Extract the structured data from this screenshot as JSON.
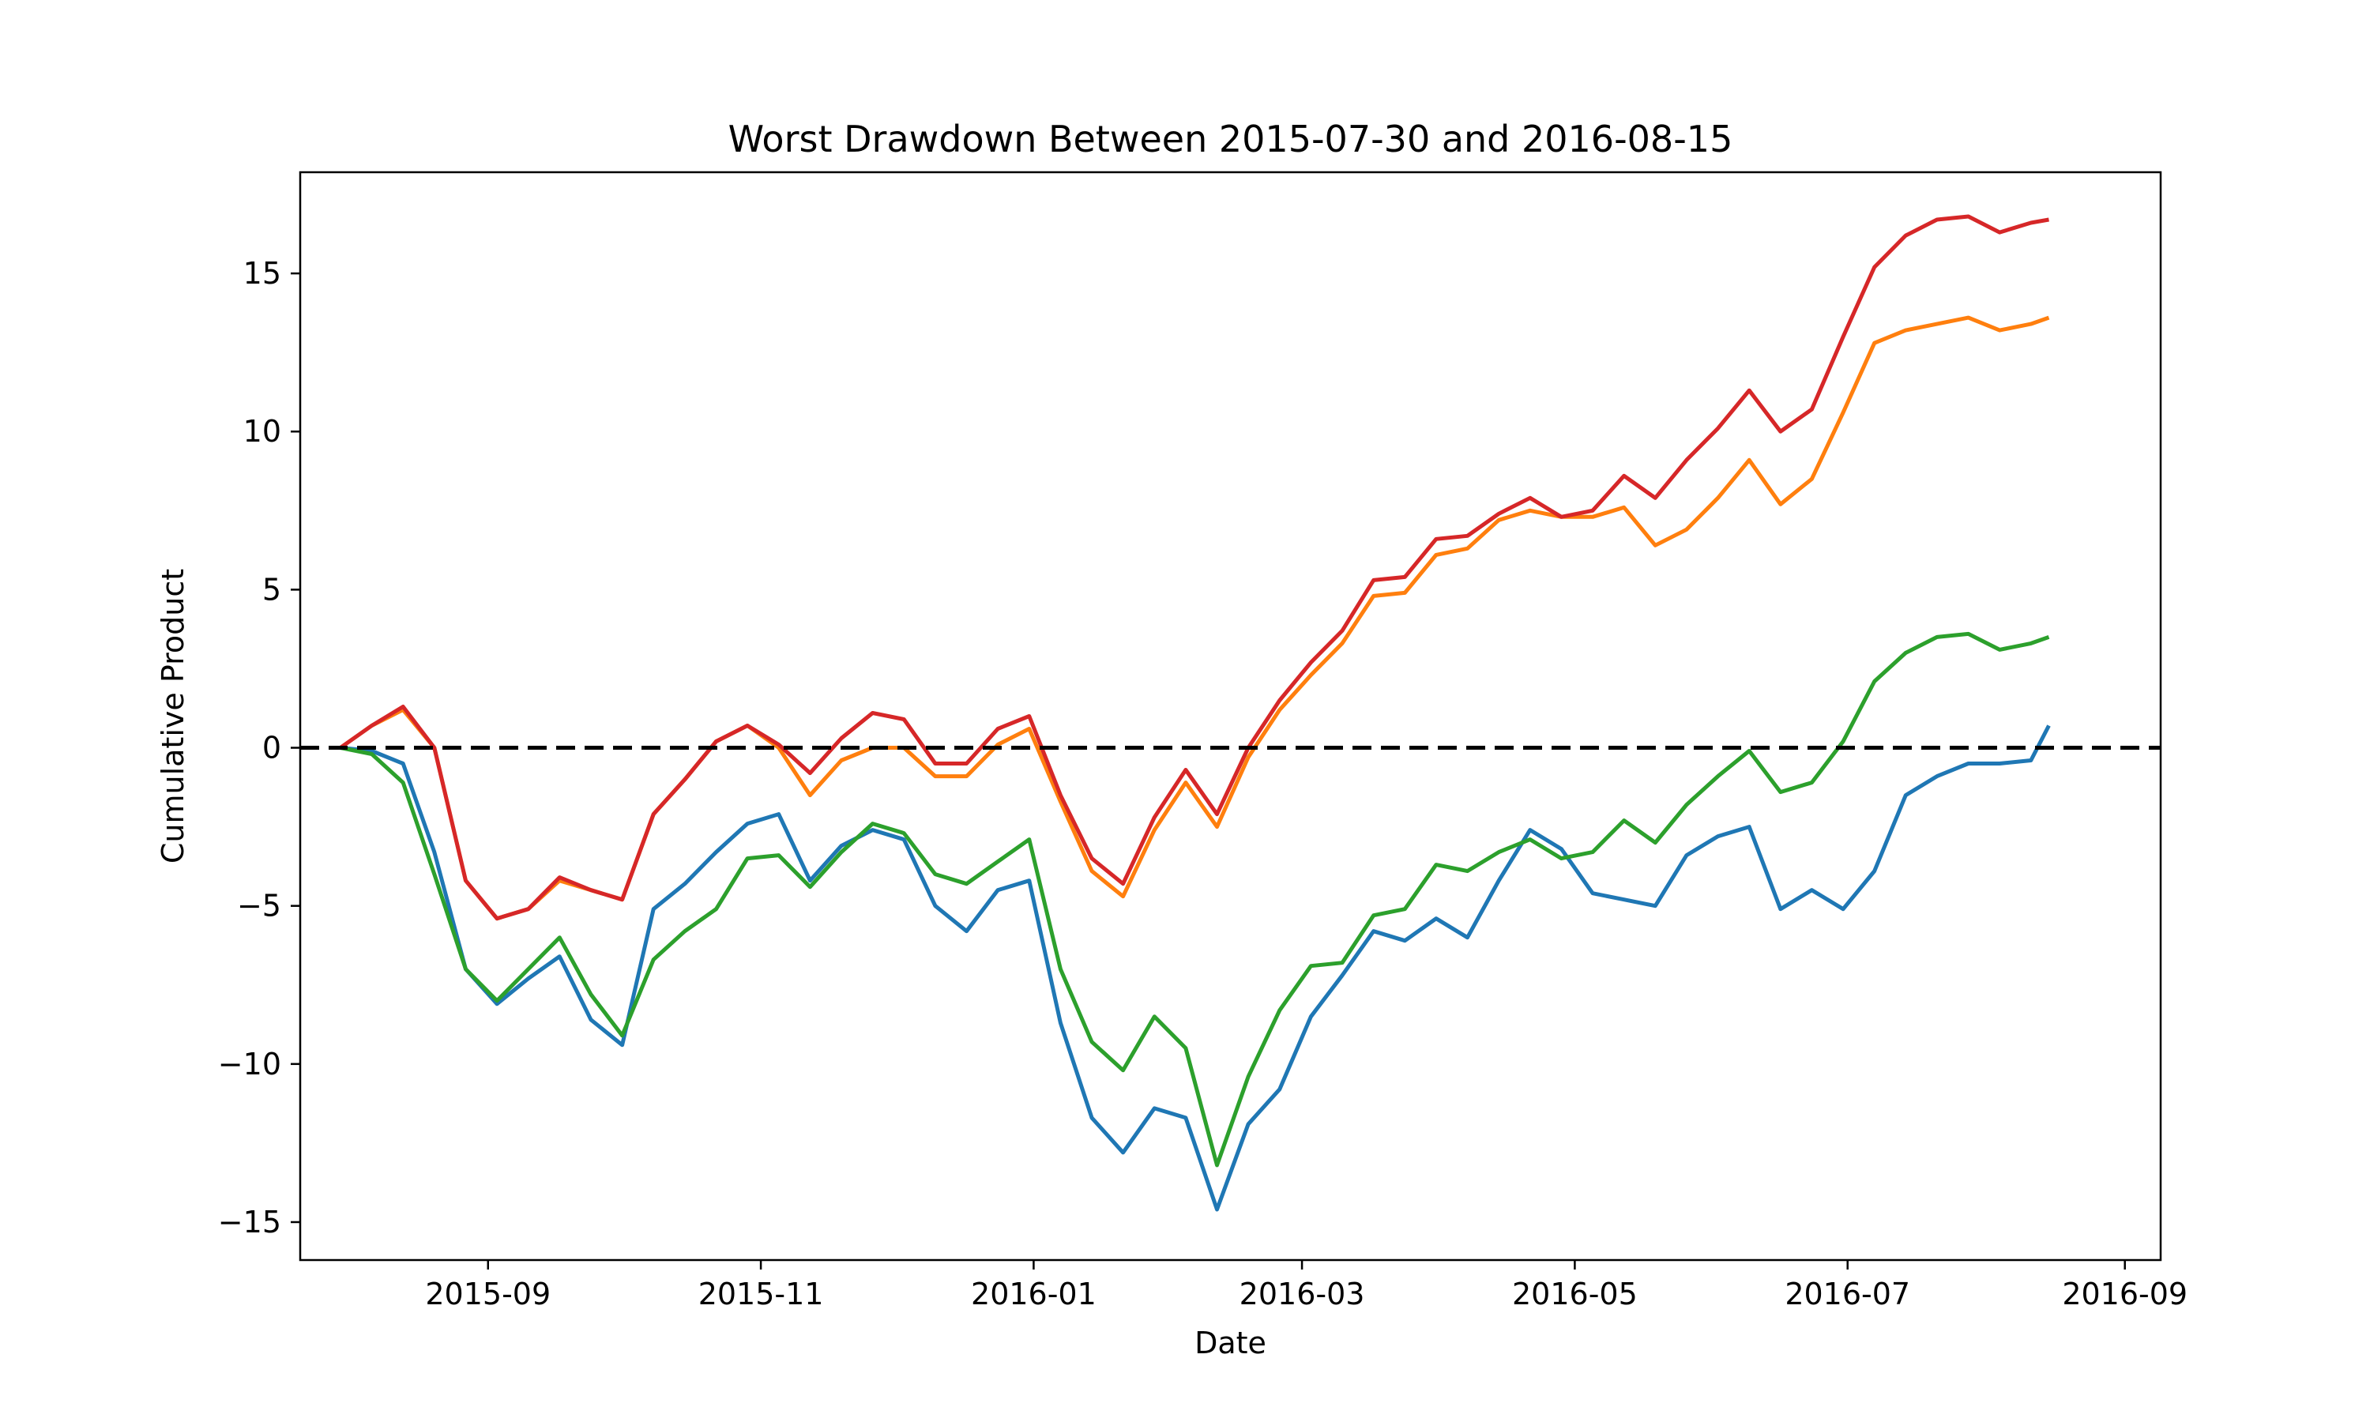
{
  "chart_data": {
    "type": "line",
    "title": "Worst Drawdown Between 2015-07-30 and 2016-08-15",
    "xlabel": "Date",
    "ylabel": "Cumulative Product",
    "xlim": [
      "2015-07-21",
      "2016-09-09"
    ],
    "ylim": [
      -16.2,
      18.2
    ],
    "xticks": [
      {
        "date": "2015-09-01",
        "label": "2015-09"
      },
      {
        "date": "2015-11-01",
        "label": "2015-11"
      },
      {
        "date": "2016-01-01",
        "label": "2016-01"
      },
      {
        "date": "2016-03-01",
        "label": "2016-03"
      },
      {
        "date": "2016-05-01",
        "label": "2016-05"
      },
      {
        "date": "2016-07-01",
        "label": "2016-07"
      },
      {
        "date": "2016-09-01",
        "label": "2016-09"
      }
    ],
    "yticks": [
      {
        "value": -15,
        "label": "−15"
      },
      {
        "value": -10,
        "label": "−10"
      },
      {
        "value": -5,
        "label": "−5"
      },
      {
        "value": 0,
        "label": "0"
      },
      {
        "value": 5,
        "label": "5"
      },
      {
        "value": 10,
        "label": "10"
      },
      {
        "value": 15,
        "label": "15"
      }
    ],
    "grid": false,
    "reference_line": {
      "y": 0,
      "color": "#000000",
      "style": "dashed"
    },
    "x": [
      "2015-07-30",
      "2015-08-06",
      "2015-08-13",
      "2015-08-20",
      "2015-08-27",
      "2015-09-03",
      "2015-09-10",
      "2015-09-17",
      "2015-09-24",
      "2015-10-01",
      "2015-10-08",
      "2015-10-15",
      "2015-10-22",
      "2015-10-29",
      "2015-11-05",
      "2015-11-12",
      "2015-11-19",
      "2015-11-26",
      "2015-12-03",
      "2015-12-10",
      "2015-12-17",
      "2015-12-24",
      "2015-12-31",
      "2016-01-07",
      "2016-01-14",
      "2016-01-21",
      "2016-01-28",
      "2016-02-04",
      "2016-02-11",
      "2016-02-18",
      "2016-02-25",
      "2016-03-03",
      "2016-03-10",
      "2016-03-17",
      "2016-03-24",
      "2016-03-31",
      "2016-04-07",
      "2016-04-14",
      "2016-04-21",
      "2016-04-28",
      "2016-05-05",
      "2016-05-12",
      "2016-05-19",
      "2016-05-26",
      "2016-06-02",
      "2016-06-09",
      "2016-06-16",
      "2016-06-23",
      "2016-06-30",
      "2016-07-07",
      "2016-07-14",
      "2016-07-21",
      "2016-07-28",
      "2016-08-04",
      "2016-08-11",
      "2016-08-15"
    ],
    "series": [
      {
        "color": "#1f77b4",
        "values": [
          0,
          -0.1,
          -0.5,
          -3.3,
          -7.0,
          -8.1,
          -7.3,
          -6.6,
          -8.6,
          -9.4,
          -5.1,
          -4.3,
          -3.3,
          -2.4,
          -2.1,
          -4.2,
          -3.1,
          -2.6,
          -2.9,
          -5.0,
          -5.8,
          -4.5,
          -4.2,
          -8.7,
          -11.7,
          -12.8,
          -11.4,
          -11.7,
          -14.6,
          -11.9,
          -10.8,
          -8.5,
          -7.2,
          -5.8,
          -6.1,
          -5.4,
          -6.0,
          -4.2,
          -2.6,
          -3.2,
          -4.6,
          -4.8,
          -5.0,
          -3.4,
          -2.8,
          -2.5,
          -5.1,
          -4.5,
          -5.1,
          -3.9,
          -1.5,
          -0.9,
          -0.5,
          -0.5,
          -0.4,
          0.7
        ]
      },
      {
        "color": "#ff7f0e",
        "values": [
          0,
          0.7,
          1.2,
          0,
          -4.2,
          -5.4,
          -5.1,
          -4.2,
          -4.5,
          -4.8,
          -2.1,
          -1.0,
          0.2,
          0.7,
          0,
          -1.5,
          -0.4,
          0,
          0,
          -0.9,
          -0.9,
          0.1,
          0.6,
          -1.7,
          -3.9,
          -4.7,
          -2.6,
          -1.1,
          -2.5,
          -0.3,
          1.2,
          2.3,
          3.3,
          4.8,
          4.9,
          6.1,
          6.3,
          7.2,
          7.5,
          7.3,
          7.3,
          7.6,
          6.4,
          6.9,
          7.9,
          9.1,
          7.7,
          8.5,
          10.6,
          12.8,
          13.2,
          13.4,
          13.6,
          13.2,
          13.4,
          13.6
        ]
      },
      {
        "color": "#2ca02c",
        "values": [
          0,
          -0.2,
          -1.1,
          -4.0,
          -7.0,
          -8.0,
          -7.0,
          -6.0,
          -7.8,
          -9.1,
          -6.7,
          -5.8,
          -5.1,
          -3.5,
          -3.4,
          -4.4,
          -3.3,
          -2.4,
          -2.7,
          -4.0,
          -4.3,
          -3.6,
          -2.9,
          -7.0,
          -9.3,
          -10.2,
          -8.5,
          -9.5,
          -13.2,
          -10.4,
          -8.3,
          -6.9,
          -6.8,
          -5.3,
          -5.1,
          -3.7,
          -3.9,
          -3.3,
          -2.9,
          -3.5,
          -3.3,
          -2.3,
          -3.0,
          -1.8,
          -0.9,
          -0.1,
          -1.4,
          -1.1,
          0.2,
          2.1,
          3.0,
          3.5,
          3.6,
          3.1,
          3.3,
          3.5
        ]
      },
      {
        "color": "#d62728",
        "values": [
          0,
          0.7,
          1.3,
          0,
          -4.2,
          -5.4,
          -5.1,
          -4.1,
          -4.5,
          -4.8,
          -2.1,
          -1.0,
          0.2,
          0.7,
          0.1,
          -0.8,
          0.3,
          1.1,
          0.9,
          -0.5,
          -0.5,
          0.6,
          1.0,
          -1.5,
          -3.5,
          -4.3,
          -2.2,
          -0.7,
          -2.1,
          0,
          1.5,
          2.7,
          3.7,
          5.3,
          5.4,
          6.6,
          6.7,
          7.4,
          7.9,
          7.3,
          7.5,
          8.6,
          7.9,
          9.1,
          10.1,
          11.3,
          10.0,
          10.7,
          13.0,
          15.2,
          16.2,
          16.7,
          16.8,
          16.3,
          16.6,
          16.7
        ]
      }
    ]
  }
}
